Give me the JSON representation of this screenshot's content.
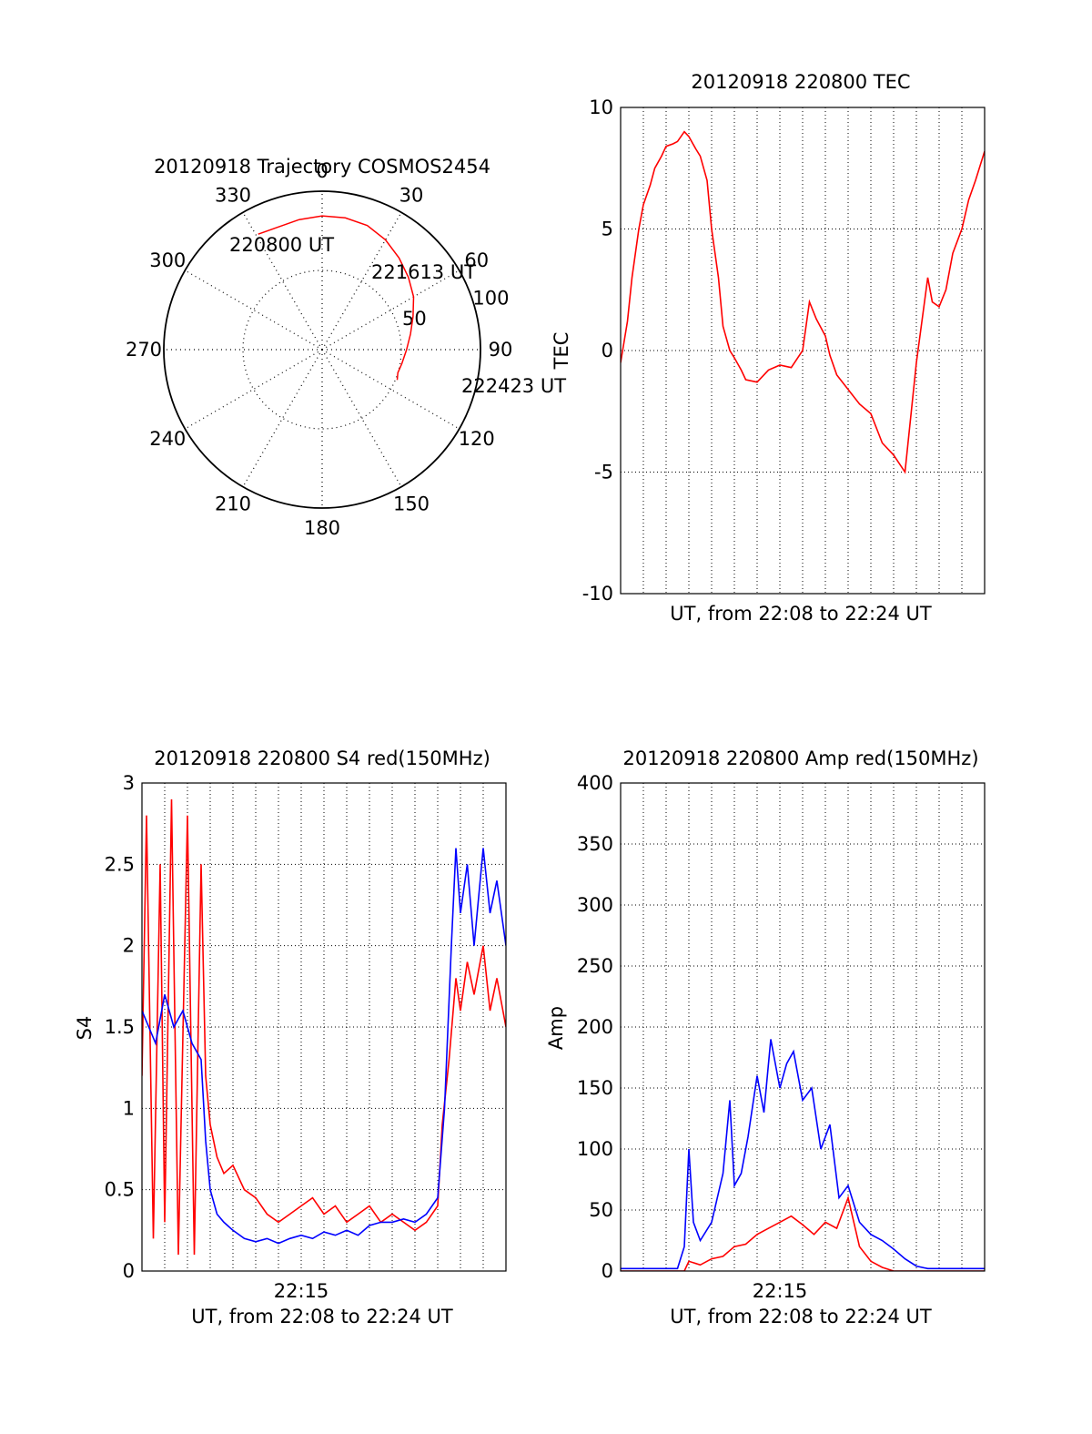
{
  "colors": {
    "background": "#ffffff",
    "axis": "#000000",
    "grid": "#000000",
    "red_series": "#ff0000",
    "blue_series": "#0000ff"
  },
  "chart_data": [
    {
      "id": "trajectory",
      "type": "polar",
      "title": "20120918 Trajectory COSMOS2454",
      "angle_labels": [
        "0",
        "30",
        "60",
        "90",
        "120",
        "150",
        "180",
        "210",
        "240",
        "270",
        "300",
        "330"
      ],
      "radial_labels": [
        "50",
        "100"
      ],
      "rlim": [
        0,
        100
      ],
      "grid": true,
      "start_label": "220800 UT",
      "mid_label": "221613 UT",
      "end_label": "222423 UT",
      "track": {
        "azimuth_deg": [
          331,
          340,
          350,
          0,
          10,
          20,
          30,
          40,
          50,
          60,
          70,
          80,
          90,
          100,
          107,
          112
        ],
        "elevation_deg": [
          15,
          16,
          15,
          14,
          14,
          15,
          18,
          22,
          26,
          30,
          35,
          39,
          42,
          44,
          45,
          44
        ]
      }
    },
    {
      "id": "tec",
      "type": "line",
      "title": "20120918 220800 TEC",
      "xlabel": "UT, from 22:08 to 22:24 UT",
      "ylabel": "TEC",
      "xlim": [
        0,
        16
      ],
      "ylim": [
        -10,
        10
      ],
      "yticks": [
        "10",
        "5",
        "0",
        "-5",
        "-10"
      ],
      "xticks": [],
      "grid": true,
      "series": [
        {
          "color": "#ff0000",
          "x": [
            0,
            0.3,
            0.5,
            0.8,
            1.0,
            1.3,
            1.5,
            1.8,
            2.0,
            2.3,
            2.5,
            2.8,
            3.0,
            3.3,
            3.5,
            3.8,
            4.0,
            4.3,
            4.5,
            4.8,
            5.0,
            5.3,
            5.5,
            6.0,
            6.5,
            7.0,
            7.5,
            8.0,
            8.3,
            8.6,
            9.0,
            9.2,
            9.5,
            10.0,
            10.5,
            11.0,
            11.5,
            12.0,
            12.5,
            13.0,
            13.5,
            13.7,
            14.0,
            14.3,
            14.6,
            15.0,
            15.3,
            15.6,
            16.0
          ],
          "y": [
            -0.5,
            1.2,
            3.0,
            5.0,
            6.0,
            6.8,
            7.5,
            8.0,
            8.4,
            8.5,
            8.6,
            9.0,
            8.8,
            8.3,
            8.0,
            7.0,
            5.0,
            3.0,
            1.0,
            0.0,
            -0.3,
            -0.8,
            -1.2,
            -1.3,
            -0.8,
            -0.6,
            -0.7,
            0.0,
            2.0,
            1.3,
            0.6,
            -0.2,
            -1.0,
            -1.6,
            -2.2,
            -2.6,
            -3.8,
            -4.3,
            -5.0,
            -0.5,
            3.0,
            2.0,
            1.8,
            2.5,
            4.0,
            5.0,
            6.2,
            7.0,
            8.2
          ]
        }
      ]
    },
    {
      "id": "s4",
      "type": "line",
      "title": "20120918 220800 S4 red(150MHz)",
      "xlabel": "UT, from 22:08 to 22:24 UT",
      "ylabel": "S4",
      "xlim": [
        0,
        16
      ],
      "ylim": [
        0,
        3
      ],
      "yticks": [
        "3",
        "2.5",
        "2",
        "1.5",
        "1",
        "0.5",
        "0"
      ],
      "xticks": [
        "22:15"
      ],
      "xtick_pos": [
        7
      ],
      "grid": true,
      "series": [
        {
          "color": "#ff0000",
          "x": [
            0,
            0.2,
            0.5,
            0.8,
            1.0,
            1.3,
            1.6,
            2.0,
            2.3,
            2.6,
            2.8,
            3.0,
            3.3,
            3.6,
            4.0,
            4.5,
            5.0,
            5.5,
            6.0,
            6.5,
            7.0,
            7.5,
            8.0,
            8.5,
            9.0,
            9.5,
            10.0,
            10.5,
            11.0,
            11.5,
            12.0,
            12.5,
            13.0,
            13.2,
            13.5,
            13.8,
            14.0,
            14.3,
            14.6,
            15.0,
            15.3,
            15.6,
            16.0
          ],
          "y": [
            1.2,
            2.8,
            0.2,
            2.5,
            0.3,
            2.9,
            0.1,
            2.8,
            0.1,
            2.5,
            1.2,
            0.9,
            0.7,
            0.6,
            0.65,
            0.5,
            0.45,
            0.35,
            0.3,
            0.35,
            0.4,
            0.45,
            0.35,
            0.4,
            0.3,
            0.35,
            0.4,
            0.3,
            0.35,
            0.3,
            0.25,
            0.3,
            0.4,
            0.9,
            1.3,
            1.8,
            1.6,
            1.9,
            1.7,
            2.0,
            1.6,
            1.8,
            1.5
          ]
        },
        {
          "color": "#0000ff",
          "x": [
            0,
            0.3,
            0.6,
            1.0,
            1.4,
            1.8,
            2.2,
            2.6,
            2.8,
            3.0,
            3.3,
            3.6,
            4.0,
            4.5,
            5.0,
            5.5,
            6.0,
            6.5,
            7.0,
            7.5,
            8.0,
            8.5,
            9.0,
            9.5,
            10.0,
            10.5,
            11.0,
            11.5,
            12.0,
            12.5,
            13.0,
            13.3,
            13.6,
            13.8,
            14.0,
            14.3,
            14.6,
            15.0,
            15.3,
            15.6,
            16.0
          ],
          "y": [
            1.6,
            1.5,
            1.4,
            1.7,
            1.5,
            1.6,
            1.4,
            1.3,
            0.8,
            0.5,
            0.35,
            0.3,
            0.25,
            0.2,
            0.18,
            0.2,
            0.17,
            0.2,
            0.22,
            0.2,
            0.24,
            0.22,
            0.25,
            0.22,
            0.28,
            0.3,
            0.3,
            0.32,
            0.3,
            0.35,
            0.45,
            1.0,
            2.0,
            2.6,
            2.2,
            2.5,
            2.0,
            2.6,
            2.2,
            2.4,
            2.0
          ]
        }
      ]
    },
    {
      "id": "amp",
      "type": "line",
      "title": "20120918 220800 Amp red(150MHz)",
      "xlabel": "UT, from 22:08 to 22:24 UT",
      "ylabel": "Amp",
      "xlim": [
        0,
        16
      ],
      "ylim": [
        0,
        400
      ],
      "yticks": [
        "400",
        "350",
        "300",
        "250",
        "200",
        "150",
        "100",
        "50",
        "0"
      ],
      "xticks": [
        "22:15"
      ],
      "xtick_pos": [
        7
      ],
      "grid": true,
      "series": [
        {
          "color": "#0000ff",
          "x": [
            0,
            2.5,
            2.8,
            3.0,
            3.2,
            3.5,
            4.0,
            4.5,
            4.8,
            5.0,
            5.3,
            5.6,
            6.0,
            6.3,
            6.6,
            7.0,
            7.3,
            7.6,
            8.0,
            8.4,
            8.8,
            9.2,
            9.6,
            10.0,
            10.5,
            11.0,
            11.5,
            12.0,
            12.5,
            13.0,
            13.5,
            14.0,
            16.0
          ],
          "y": [
            2,
            2,
            20,
            100,
            40,
            25,
            40,
            80,
            140,
            70,
            80,
            110,
            160,
            130,
            190,
            150,
            170,
            180,
            140,
            150,
            100,
            120,
            60,
            70,
            40,
            30,
            25,
            18,
            10,
            4,
            2,
            2,
            2
          ]
        },
        {
          "color": "#ff0000",
          "x": [
            0,
            2.8,
            3.0,
            3.5,
            4.0,
            4.5,
            5.0,
            5.5,
            6.0,
            6.5,
            7.0,
            7.5,
            8.0,
            8.5,
            9.0,
            9.5,
            10.0,
            10.5,
            11.0,
            11.5,
            12.0,
            16.0
          ],
          "y": [
            0,
            0,
            8,
            5,
            10,
            12,
            20,
            22,
            30,
            35,
            40,
            45,
            38,
            30,
            40,
            35,
            60,
            20,
            8,
            3,
            0,
            0
          ]
        }
      ]
    }
  ]
}
